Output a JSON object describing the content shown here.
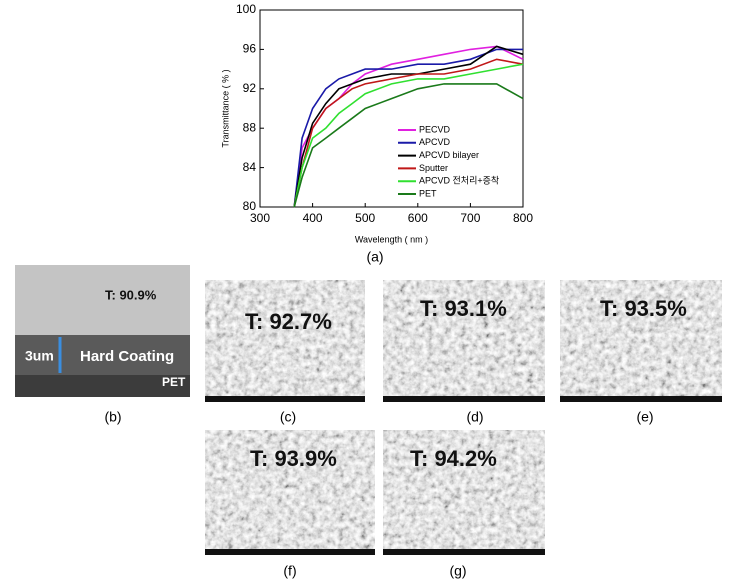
{
  "chart_data": {
    "type": "line",
    "caption": "(a)",
    "x_label": "Wavelength ( nm )",
    "y_label": "Transmittance ( % )",
    "x": [
      365,
      380,
      400,
      425,
      450,
      475,
      500,
      550,
      600,
      650,
      700,
      750,
      800
    ],
    "xlim": [
      300,
      800
    ],
    "xticks": [
      300,
      400,
      500,
      600,
      700,
      800
    ],
    "ylim": [
      80,
      100
    ],
    "yticks": [
      80,
      84,
      88,
      92,
      96,
      100
    ],
    "legend": "lower-right",
    "series": [
      {
        "name": "PECVD",
        "color": "#e020e0",
        "values": [
          80,
          86,
          88,
          90,
          91,
          92.5,
          93.5,
          94.5,
          95,
          95.5,
          96,
          96.3,
          95
        ]
      },
      {
        "name": "APCVD",
        "color": "#1a1aa8",
        "values": [
          80,
          87,
          90,
          92,
          93,
          93.5,
          94,
          94,
          94.5,
          94.5,
          95,
          96,
          96
        ]
      },
      {
        "name": "APCVD bilayer",
        "color": "#000000",
        "values": [
          80,
          85,
          88.5,
          90.5,
          92,
          92.5,
          93,
          93.5,
          93.5,
          94,
          94.5,
          96.3,
          95.5
        ]
      },
      {
        "name": "Sputter",
        "color": "#c01818",
        "values": [
          80,
          84,
          88,
          90,
          91,
          92,
          92.5,
          93,
          93.5,
          93.5,
          94,
          95,
          94.5
        ]
      },
      {
        "name": "APCVD 전처리+증착",
        "color": "#30e030",
        "values": [
          80,
          84,
          87,
          88,
          89.5,
          90.5,
          91.5,
          92.5,
          93,
          93,
          93.5,
          94,
          94.5
        ]
      },
      {
        "name": "PET",
        "color": "#1a7a1a",
        "values": [
          80,
          83,
          86,
          87,
          88,
          89,
          90,
          91,
          92,
          92.5,
          92.5,
          92.5,
          91
        ]
      }
    ]
  },
  "panels": [
    {
      "caption": "(b)",
      "texts": [
        "T: 90.9%",
        "3um",
        "Hard Coating",
        "PET"
      ]
    },
    {
      "caption": "(c)",
      "texts": [
        "T: 92.7%"
      ]
    },
    {
      "caption": "(d)",
      "texts": [
        "T: 93.1%"
      ]
    },
    {
      "caption": "(e)",
      "texts": [
        "T: 93.5%"
      ]
    },
    {
      "caption": "(f)",
      "texts": [
        "T: 93.9%"
      ]
    },
    {
      "caption": "(g)",
      "texts": [
        "T: 94.2%"
      ]
    }
  ]
}
